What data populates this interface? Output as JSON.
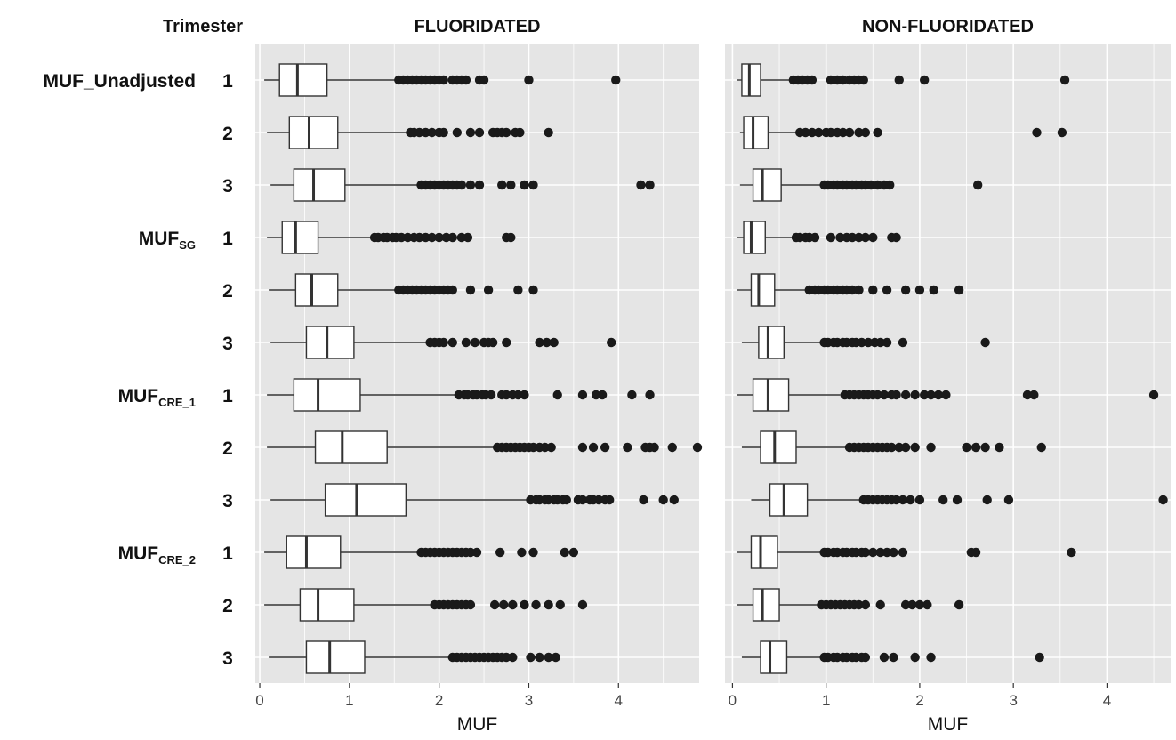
{
  "chart_data": {
    "type": "boxplot",
    "orientation": "horizontal",
    "row_header": "Trimester",
    "xlabel": "MUF",
    "grid": true,
    "panels": [
      {
        "title": "FLUORIDATED",
        "xlim": [
          -0.05,
          4.9
        ],
        "xticks": [
          0,
          1,
          2,
          3,
          4
        ],
        "rows": [
          {
            "trimester": "1",
            "whisker_low": 0.05,
            "q1": 0.22,
            "median": 0.42,
            "q3": 0.75,
            "whisker_high": 1.52,
            "outliers": [
              1.55,
              1.6,
              1.65,
              1.7,
              1.75,
              1.8,
              1.85,
              1.9,
              1.95,
              2.0,
              2.05,
              2.15,
              2.2,
              2.25,
              2.3,
              2.45,
              2.5,
              3.0,
              3.97
            ]
          },
          {
            "trimester": "2",
            "whisker_low": 0.08,
            "q1": 0.33,
            "median": 0.55,
            "q3": 0.87,
            "whisker_high": 1.65,
            "outliers": [
              1.68,
              1.72,
              1.78,
              1.85,
              1.92,
              2.0,
              2.05,
              2.2,
              2.35,
              2.45,
              2.6,
              2.65,
              2.7,
              2.75,
              2.85,
              2.9,
              3.22
            ]
          },
          {
            "trimester": "3",
            "whisker_low": 0.12,
            "q1": 0.38,
            "median": 0.6,
            "q3": 0.95,
            "whisker_high": 1.78,
            "outliers": [
              1.8,
              1.85,
              1.9,
              1.95,
              2.0,
              2.05,
              2.1,
              2.15,
              2.2,
              2.25,
              2.35,
              2.45,
              2.7,
              2.8,
              2.95,
              3.05,
              4.25,
              4.35
            ]
          },
          {
            "trimester": "1",
            "whisker_low": 0.08,
            "q1": 0.25,
            "median": 0.4,
            "q3": 0.65,
            "whisker_high": 1.25,
            "outliers": [
              1.28,
              1.32,
              1.38,
              1.42,
              1.48,
              1.52,
              1.58,
              1.65,
              1.72,
              1.78,
              1.85,
              1.92,
              2.0,
              2.08,
              2.15,
              2.25,
              2.32,
              2.75,
              2.8
            ]
          },
          {
            "trimester": "2",
            "whisker_low": 0.1,
            "q1": 0.4,
            "median": 0.58,
            "q3": 0.87,
            "whisker_high": 1.52,
            "outliers": [
              1.55,
              1.6,
              1.65,
              1.7,
              1.75,
              1.8,
              1.85,
              1.9,
              1.95,
              2.0,
              2.05,
              2.1,
              2.15,
              2.35,
              2.55,
              2.88,
              3.05
            ]
          },
          {
            "trimester": "3",
            "whisker_low": 0.12,
            "q1": 0.52,
            "median": 0.75,
            "q3": 1.05,
            "whisker_high": 1.88,
            "outliers": [
              1.9,
              1.95,
              2.0,
              2.05,
              2.15,
              2.3,
              2.4,
              2.5,
              2.55,
              2.6,
              2.75,
              3.12,
              3.2,
              3.28,
              3.92
            ]
          },
          {
            "trimester": "1",
            "whisker_low": 0.08,
            "q1": 0.38,
            "median": 0.65,
            "q3": 1.12,
            "whisker_high": 2.2,
            "outliers": [
              2.22,
              2.28,
              2.32,
              2.38,
              2.42,
              2.48,
              2.52,
              2.58,
              2.7,
              2.75,
              2.82,
              2.88,
              2.95,
              3.32,
              3.6,
              3.75,
              3.82,
              4.15,
              4.35
            ]
          },
          {
            "trimester": "2",
            "whisker_low": 0.08,
            "q1": 0.62,
            "median": 0.92,
            "q3": 1.42,
            "whisker_high": 2.62,
            "outliers": [
              2.65,
              2.7,
              2.75,
              2.8,
              2.85,
              2.9,
              2.95,
              3.0,
              3.05,
              3.12,
              3.18,
              3.25,
              3.6,
              3.72,
              3.85,
              4.1,
              4.3,
              4.35,
              4.4,
              4.6,
              4.88
            ]
          },
          {
            "trimester": "3",
            "whisker_low": 0.12,
            "q1": 0.73,
            "median": 1.08,
            "q3": 1.63,
            "whisker_high": 3.0,
            "outliers": [
              3.02,
              3.08,
              3.12,
              3.18,
              3.22,
              3.28,
              3.32,
              3.38,
              3.42,
              3.55,
              3.6,
              3.68,
              3.72,
              3.78,
              3.85,
              3.9,
              4.28,
              4.5,
              4.62
            ]
          },
          {
            "trimester": "1",
            "whisker_low": 0.05,
            "q1": 0.3,
            "median": 0.52,
            "q3": 0.9,
            "whisker_high": 1.78,
            "outliers": [
              1.8,
              1.85,
              1.9,
              1.95,
              2.0,
              2.05,
              2.1,
              2.15,
              2.2,
              2.25,
              2.3,
              2.35,
              2.42,
              2.68,
              2.92,
              3.05,
              3.4,
              3.5
            ]
          },
          {
            "trimester": "2",
            "whisker_low": 0.05,
            "q1": 0.45,
            "median": 0.65,
            "q3": 1.05,
            "whisker_high": 1.92,
            "outliers": [
              1.95,
              2.0,
              2.05,
              2.1,
              2.15,
              2.2,
              2.25,
              2.3,
              2.35,
              2.62,
              2.72,
              2.82,
              2.95,
              3.08,
              3.22,
              3.35,
              3.6
            ]
          },
          {
            "trimester": "3",
            "whisker_low": 0.1,
            "q1": 0.52,
            "median": 0.78,
            "q3": 1.17,
            "whisker_high": 2.12,
            "outliers": [
              2.15,
              2.2,
              2.25,
              2.3,
              2.35,
              2.4,
              2.45,
              2.5,
              2.55,
              2.6,
              2.65,
              2.7,
              2.75,
              2.82,
              3.02,
              3.12,
              3.22,
              3.3
            ]
          }
        ]
      },
      {
        "title": "NON-FLUORIDATED",
        "xlim": [
          -0.08,
          4.68
        ],
        "xticks": [
          0,
          1,
          2,
          3,
          4
        ],
        "rows": [
          {
            "trimester": "1",
            "whisker_low": 0.05,
            "q1": 0.1,
            "median": 0.18,
            "q3": 0.3,
            "whisker_high": 0.62,
            "outliers": [
              0.65,
              0.7,
              0.75,
              0.8,
              0.85,
              1.05,
              1.12,
              1.18,
              1.25,
              1.3,
              1.35,
              1.4,
              1.78,
              2.05,
              3.55
            ]
          },
          {
            "trimester": "2",
            "whisker_low": 0.08,
            "q1": 0.12,
            "median": 0.22,
            "q3": 0.38,
            "whisker_high": 0.7,
            "outliers": [
              0.72,
              0.78,
              0.85,
              0.92,
              1.0,
              1.05,
              1.12,
              1.18,
              1.25,
              1.35,
              1.42,
              1.55,
              3.25,
              3.52
            ]
          },
          {
            "trimester": "3",
            "whisker_low": 0.08,
            "q1": 0.22,
            "median": 0.32,
            "q3": 0.52,
            "whisker_high": 0.95,
            "outliers": [
              0.98,
              1.02,
              1.08,
              1.12,
              1.18,
              1.22,
              1.28,
              1.32,
              1.38,
              1.42,
              1.48,
              1.55,
              1.62,
              1.68,
              2.62
            ]
          },
          {
            "trimester": "1",
            "whisker_low": 0.05,
            "q1": 0.12,
            "median": 0.2,
            "q3": 0.35,
            "whisker_high": 0.65,
            "outliers": [
              0.68,
              0.72,
              0.78,
              0.82,
              0.88,
              1.05,
              1.15,
              1.22,
              1.28,
              1.35,
              1.42,
              1.5,
              1.7,
              1.75
            ]
          },
          {
            "trimester": "2",
            "whisker_low": 0.05,
            "q1": 0.2,
            "median": 0.28,
            "q3": 0.45,
            "whisker_high": 0.8,
            "outliers": [
              0.82,
              0.88,
              0.92,
              0.98,
              1.02,
              1.08,
              1.12,
              1.18,
              1.22,
              1.28,
              1.35,
              1.5,
              1.65,
              1.85,
              2.0,
              2.15,
              2.42
            ]
          },
          {
            "trimester": "3",
            "whisker_low": 0.1,
            "q1": 0.28,
            "median": 0.38,
            "q3": 0.55,
            "whisker_high": 0.95,
            "outliers": [
              0.98,
              1.02,
              1.08,
              1.12,
              1.18,
              1.22,
              1.28,
              1.32,
              1.38,
              1.45,
              1.52,
              1.58,
              1.65,
              1.82,
              2.7
            ]
          },
          {
            "trimester": "1",
            "whisker_low": 0.05,
            "q1": 0.22,
            "median": 0.38,
            "q3": 0.6,
            "whisker_high": 1.15,
            "outliers": [
              1.2,
              1.25,
              1.3,
              1.35,
              1.4,
              1.45,
              1.5,
              1.55,
              1.62,
              1.7,
              1.75,
              1.85,
              1.95,
              2.05,
              2.12,
              2.2,
              2.28,
              3.15,
              3.22,
              4.5
            ]
          },
          {
            "trimester": "2",
            "whisker_low": 0.1,
            "q1": 0.3,
            "median": 0.45,
            "q3": 0.68,
            "whisker_high": 1.22,
            "outliers": [
              1.25,
              1.3,
              1.35,
              1.4,
              1.45,
              1.5,
              1.55,
              1.6,
              1.65,
              1.7,
              1.78,
              1.85,
              1.95,
              2.12,
              2.5,
              2.6,
              2.7,
              2.85,
              3.3
            ]
          },
          {
            "trimester": "3",
            "whisker_low": 0.2,
            "q1": 0.4,
            "median": 0.55,
            "q3": 0.8,
            "whisker_high": 1.38,
            "outliers": [
              1.4,
              1.45,
              1.5,
              1.55,
              1.6,
              1.65,
              1.7,
              1.75,
              1.82,
              1.9,
              2.0,
              2.25,
              2.4,
              2.72,
              2.95,
              4.6
            ]
          },
          {
            "trimester": "1",
            "whisker_low": 0.05,
            "q1": 0.2,
            "median": 0.3,
            "q3": 0.48,
            "whisker_high": 0.95,
            "outliers": [
              0.98,
              1.02,
              1.08,
              1.12,
              1.18,
              1.22,
              1.28,
              1.32,
              1.38,
              1.42,
              1.5,
              1.58,
              1.65,
              1.72,
              1.82,
              2.55,
              2.6,
              3.62
            ]
          },
          {
            "trimester": "2",
            "whisker_low": 0.05,
            "q1": 0.22,
            "median": 0.32,
            "q3": 0.5,
            "whisker_high": 0.92,
            "outliers": [
              0.95,
              1.0,
              1.05,
              1.1,
              1.15,
              1.2,
              1.25,
              1.3,
              1.35,
              1.42,
              1.58,
              1.85,
              1.92,
              2.0,
              2.08,
              2.42
            ]
          },
          {
            "trimester": "3",
            "whisker_low": 0.1,
            "q1": 0.3,
            "median": 0.4,
            "q3": 0.58,
            "whisker_high": 0.95,
            "outliers": [
              0.98,
              1.02,
              1.08,
              1.12,
              1.18,
              1.22,
              1.28,
              1.32,
              1.38,
              1.42,
              1.62,
              1.72,
              1.95,
              2.12,
              3.28
            ]
          }
        ]
      }
    ],
    "row_groups": [
      {
        "base": "MUF_Unadjusted",
        "sub": "",
        "rows": [
          0,
          1,
          2
        ]
      },
      {
        "base": "MUF",
        "sub": "SG",
        "rows": [
          3,
          4,
          5
        ]
      },
      {
        "base": "MUF",
        "sub": "CRE_1",
        "rows": [
          6,
          7,
          8
        ]
      },
      {
        "base": "MUF",
        "sub": "CRE_2",
        "rows": [
          9,
          10,
          11
        ]
      }
    ],
    "colors": {
      "panel_background": "#e5e5e5",
      "gridline": "#ffffff",
      "box_fill": "#ffffff",
      "box_stroke": "#333333",
      "outlier": "#1a1a1a",
      "text": "#111111",
      "tick_text": "#444444"
    }
  }
}
